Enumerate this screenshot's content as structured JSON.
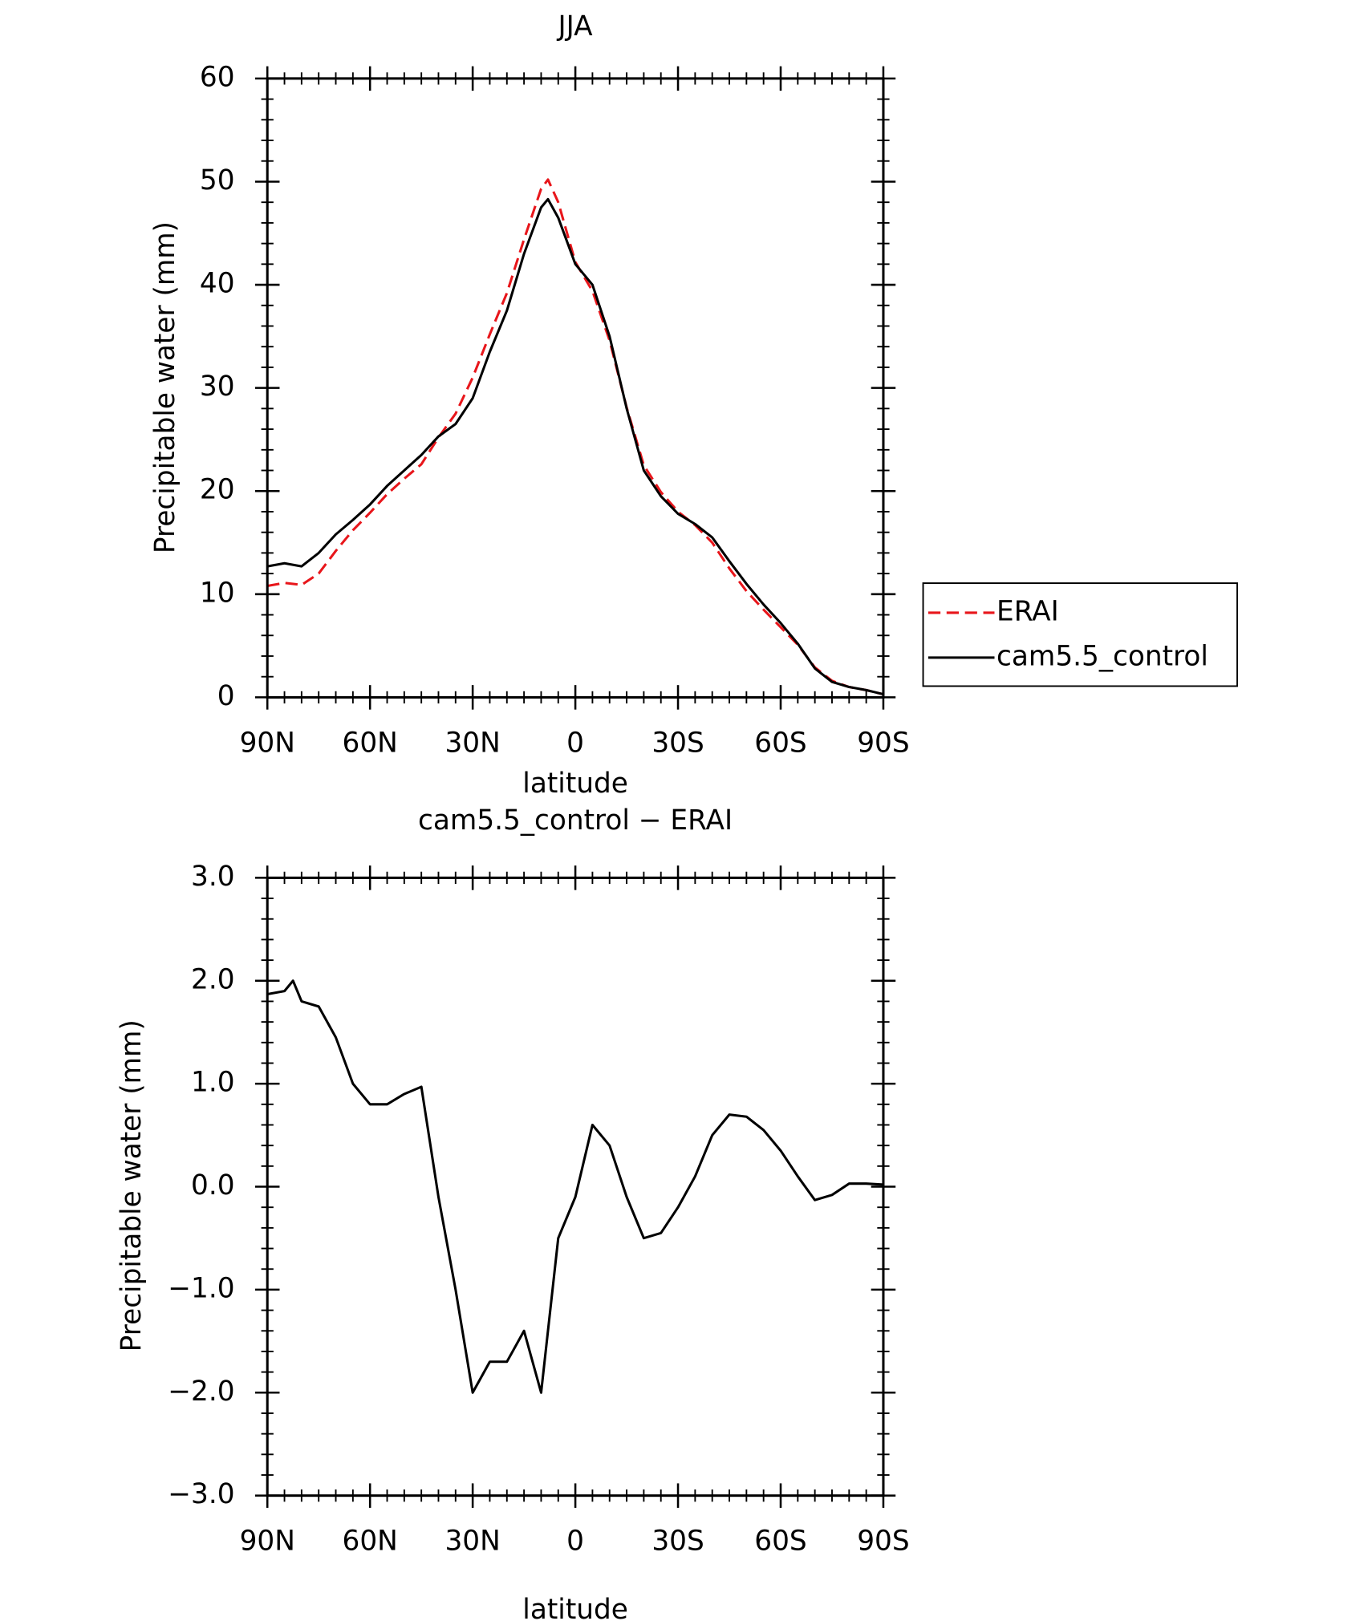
{
  "chart_data": [
    {
      "type": "line",
      "title": "JJA",
      "xlabel": "latitude",
      "ylabel": "Precipitable water (mm)",
      "x": [
        90,
        85,
        80,
        75,
        70,
        65,
        60,
        55,
        50,
        45,
        40,
        35,
        30,
        25,
        20,
        15,
        10,
        8,
        5,
        0,
        -5,
        -10,
        -15,
        -20,
        -25,
        -30,
        -35,
        -40,
        -45,
        -50,
        -55,
        -60,
        -65,
        -70,
        -75,
        -80,
        -85,
        -90
      ],
      "series": [
        {
          "name": "ERAI",
          "color": "#e8161b",
          "dashed": true,
          "values": [
            10.8,
            11.1,
            10.9,
            12.0,
            14.2,
            16.2,
            17.9,
            19.7,
            21.2,
            22.6,
            25.2,
            27.5,
            31.0,
            35.2,
            39.2,
            44.4,
            49.3,
            50.2,
            48.0,
            42.2,
            39.4,
            34.6,
            28.1,
            22.5,
            19.9,
            18.0,
            16.7,
            15.0,
            12.5,
            10.3,
            8.5,
            6.8,
            5.1,
            2.9,
            1.6,
            1.0,
            0.7,
            0.3
          ]
        },
        {
          "name": "cam5.5_control",
          "color": "#000000",
          "dashed": false,
          "values": [
            12.7,
            13.0,
            12.7,
            14.0,
            15.8,
            17.2,
            18.7,
            20.5,
            22.0,
            23.5,
            25.3,
            26.5,
            29.0,
            33.5,
            37.5,
            43.0,
            47.5,
            48.3,
            46.5,
            42.0,
            40.0,
            35.0,
            28.0,
            22.0,
            19.5,
            17.8,
            16.8,
            15.5,
            13.2,
            11.0,
            9.0,
            7.2,
            5.2,
            2.8,
            1.5,
            1.0,
            0.7,
            0.3
          ]
        }
      ],
      "xlim": [
        90,
        -90
      ],
      "xticks": [
        {
          "value": 90,
          "label": "90N"
        },
        {
          "value": 60,
          "label": "60N"
        },
        {
          "value": 30,
          "label": "30N"
        },
        0,
        {
          "value": -30,
          "label": "30S"
        },
        {
          "value": -60,
          "label": "60S"
        },
        {
          "value": -90,
          "label": "90S"
        }
      ],
      "ylim": [
        0,
        60
      ],
      "yticks": [
        0,
        10,
        20,
        30,
        40,
        50,
        60
      ],
      "grid": false,
      "legend": "outside-right"
    },
    {
      "type": "line",
      "title": "cam5.5_control − ERAI",
      "xlabel": "latitude",
      "ylabel": "Precipitable water (mm)",
      "x": [
        90,
        85,
        82.5,
        80,
        75,
        70,
        65,
        60,
        55,
        50,
        45,
        40,
        35,
        30,
        25,
        20,
        15,
        10,
        5,
        0,
        -5,
        -10,
        -15,
        -20,
        -25,
        -30,
        -35,
        -40,
        -45,
        -50,
        -55,
        -60,
        -65,
        -70,
        -75,
        -80,
        -85,
        -90
      ],
      "series": [
        {
          "name": "cam5.5_control − ERAI",
          "color": "#000000",
          "dashed": false,
          "values": [
            1.87,
            1.9,
            2.0,
            1.8,
            1.75,
            1.45,
            1.0,
            0.8,
            0.8,
            0.9,
            0.97,
            -0.1,
            -1.0,
            -2.0,
            -1.7,
            -1.7,
            -1.4,
            -2.0,
            -0.5,
            -0.1,
            0.6,
            0.4,
            -0.1,
            -0.5,
            -0.45,
            -0.2,
            0.1,
            0.5,
            0.7,
            0.68,
            0.55,
            0.35,
            0.1,
            -0.13,
            -0.08,
            0.03,
            0.03,
            0.02
          ]
        }
      ],
      "xlim": [
        90,
        -90
      ],
      "xticks": [
        {
          "value": 90,
          "label": "90N"
        },
        {
          "value": 60,
          "label": "60N"
        },
        {
          "value": 30,
          "label": "30N"
        },
        0,
        {
          "value": -30,
          "label": "30S"
        },
        {
          "value": -60,
          "label": "60S"
        },
        {
          "value": -90,
          "label": "90S"
        }
      ],
      "ylim": [
        -3,
        3
      ],
      "yticks": [
        {
          "value": -3,
          "label": "−3.0"
        },
        {
          "value": -2,
          "label": "−2.0"
        },
        {
          "value": -1,
          "label": "−1.0"
        },
        {
          "value": 0,
          "label": "0.0"
        },
        {
          "value": 1,
          "label": "1.0"
        },
        {
          "value": 2,
          "label": "2.0"
        },
        {
          "value": 3,
          "label": "3.0"
        }
      ],
      "grid": false,
      "legend": "none"
    }
  ]
}
